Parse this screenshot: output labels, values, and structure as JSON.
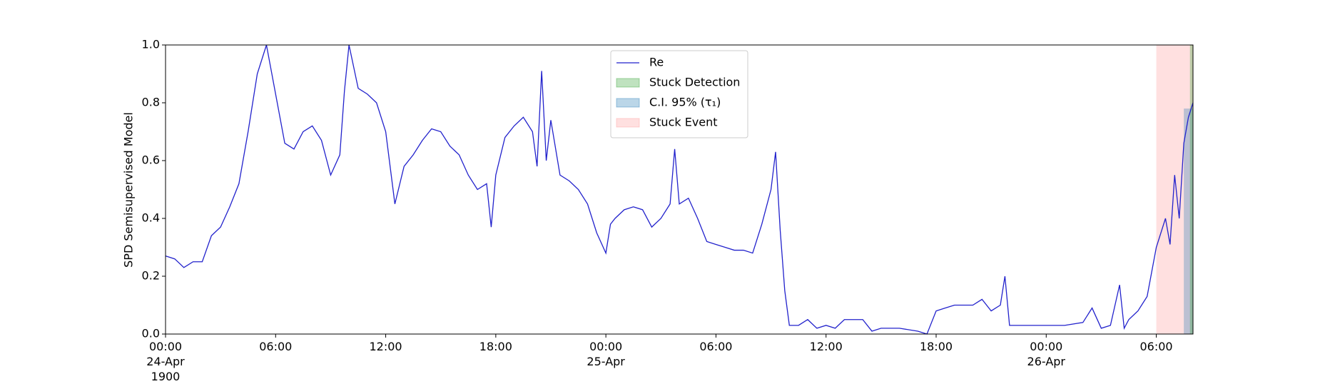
{
  "chart_data": {
    "type": "line",
    "ylabel": "SPD Semisupervised Model",
    "xlim": [
      "1900-04-24T00:00",
      "1900-04-26T08:00"
    ],
    "xticks": [
      {
        "value": "1900-04-24T00:00",
        "label": "00:00\n24-Apr\n1900"
      },
      {
        "value": "1900-04-24T06:00",
        "label": "06:00"
      },
      {
        "value": "1900-04-24T12:00",
        "label": "12:00"
      },
      {
        "value": "1900-04-24T18:00",
        "label": "18:00"
      },
      {
        "value": "1900-04-25T00:00",
        "label": "00:00\n25-Apr"
      },
      {
        "value": "1900-04-25T06:00",
        "label": "06:00"
      },
      {
        "value": "1900-04-25T12:00",
        "label": "12:00"
      },
      {
        "value": "1900-04-25T18:00",
        "label": "18:00"
      },
      {
        "value": "1900-04-26T00:00",
        "label": "00:00\n26-Apr"
      },
      {
        "value": "1900-04-26T06:00",
        "label": "06:00"
      }
    ],
    "ylim": [
      0,
      1
    ],
    "yticks": [
      {
        "value": 0,
        "label": "0.0"
      },
      {
        "value": 0.2,
        "label": "0.2"
      },
      {
        "value": 0.4,
        "label": "0.4"
      },
      {
        "value": 0.6,
        "label": "0.6"
      },
      {
        "value": 0.8,
        "label": "0.8"
      },
      {
        "value": 1,
        "label": "1.0"
      }
    ],
    "legend": "upper center",
    "series": [
      {
        "name": "Re",
        "color": "#2222cc",
        "x": [
          "1900-04-24T00:00",
          "1900-04-24T00:30",
          "1900-04-24T01:00",
          "1900-04-24T01:30",
          "1900-04-24T02:00",
          "1900-04-24T02:30",
          "1900-04-24T03:00",
          "1900-04-24T03:30",
          "1900-04-24T04:00",
          "1900-04-24T04:30",
          "1900-04-24T05:00",
          "1900-04-24T05:30",
          "1900-04-24T06:00",
          "1900-04-24T06:30",
          "1900-04-24T07:00",
          "1900-04-24T07:30",
          "1900-04-24T08:00",
          "1900-04-24T08:30",
          "1900-04-24T09:00",
          "1900-04-24T09:30",
          "1900-04-24T09:45",
          "1900-04-24T10:00",
          "1900-04-24T10:30",
          "1900-04-24T11:00",
          "1900-04-24T11:30",
          "1900-04-24T12:00",
          "1900-04-24T12:30",
          "1900-04-24T13:00",
          "1900-04-24T13:30",
          "1900-04-24T14:00",
          "1900-04-24T14:30",
          "1900-04-24T15:00",
          "1900-04-24T15:30",
          "1900-04-24T16:00",
          "1900-04-24T16:30",
          "1900-04-24T17:00",
          "1900-04-24T17:30",
          "1900-04-24T17:45",
          "1900-04-24T18:00",
          "1900-04-24T18:30",
          "1900-04-24T19:00",
          "1900-04-24T19:30",
          "1900-04-24T20:00",
          "1900-04-24T20:15",
          "1900-04-24T20:30",
          "1900-04-24T20:45",
          "1900-04-24T21:00",
          "1900-04-24T21:30",
          "1900-04-24T22:00",
          "1900-04-24T22:30",
          "1900-04-24T23:00",
          "1900-04-24T23:30",
          "1900-04-25T00:00",
          "1900-04-25T00:15",
          "1900-04-25T00:30",
          "1900-04-25T01:00",
          "1900-04-25T01:30",
          "1900-04-25T02:00",
          "1900-04-25T02:30",
          "1900-04-25T03:00",
          "1900-04-25T03:30",
          "1900-04-25T03:45",
          "1900-04-25T04:00",
          "1900-04-25T04:30",
          "1900-04-25T05:00",
          "1900-04-25T05:30",
          "1900-04-25T06:00",
          "1900-04-25T06:30",
          "1900-04-25T07:00",
          "1900-04-25T07:30",
          "1900-04-25T08:00",
          "1900-04-25T08:30",
          "1900-04-25T09:00",
          "1900-04-25T09:15",
          "1900-04-25T09:30",
          "1900-04-25T09:45",
          "1900-04-25T10:00",
          "1900-04-25T10:30",
          "1900-04-25T11:00",
          "1900-04-25T11:30",
          "1900-04-25T12:00",
          "1900-04-25T12:30",
          "1900-04-25T13:00",
          "1900-04-25T14:00",
          "1900-04-25T14:30",
          "1900-04-25T15:00",
          "1900-04-25T16:00",
          "1900-04-25T17:00",
          "1900-04-25T17:30",
          "1900-04-25T18:00",
          "1900-04-25T18:30",
          "1900-04-25T19:00",
          "1900-04-25T20:00",
          "1900-04-25T20:30",
          "1900-04-25T21:00",
          "1900-04-25T21:30",
          "1900-04-25T21:45",
          "1900-04-25T22:00",
          "1900-04-25T23:00",
          "1900-04-26T00:00",
          "1900-04-26T01:00",
          "1900-04-26T02:00",
          "1900-04-26T02:30",
          "1900-04-26T03:00",
          "1900-04-26T03:30",
          "1900-04-26T04:00",
          "1900-04-26T04:15",
          "1900-04-26T04:30",
          "1900-04-26T05:00",
          "1900-04-26T05:30",
          "1900-04-26T06:00",
          "1900-04-26T06:30",
          "1900-04-26T06:45",
          "1900-04-26T07:00",
          "1900-04-26T07:15",
          "1900-04-26T07:30",
          "1900-04-26T07:45",
          "1900-04-26T08:00"
        ],
        "values": [
          0.27,
          0.26,
          0.23,
          0.25,
          0.25,
          0.34,
          0.37,
          0.44,
          0.52,
          0.7,
          0.9,
          1.0,
          0.83,
          0.66,
          0.64,
          0.7,
          0.72,
          0.67,
          0.55,
          0.62,
          0.84,
          1.0,
          0.85,
          0.83,
          0.8,
          0.7,
          0.45,
          0.58,
          0.62,
          0.67,
          0.71,
          0.7,
          0.65,
          0.62,
          0.55,
          0.5,
          0.52,
          0.37,
          0.55,
          0.68,
          0.72,
          0.75,
          0.7,
          0.58,
          0.91,
          0.6,
          0.74,
          0.55,
          0.53,
          0.5,
          0.45,
          0.35,
          0.28,
          0.38,
          0.4,
          0.43,
          0.44,
          0.43,
          0.37,
          0.4,
          0.45,
          0.64,
          0.45,
          0.47,
          0.4,
          0.32,
          0.31,
          0.3,
          0.29,
          0.29,
          0.28,
          0.38,
          0.5,
          0.63,
          0.36,
          0.15,
          0.03,
          0.03,
          0.05,
          0.02,
          0.03,
          0.02,
          0.05,
          0.05,
          0.01,
          0.02,
          0.02,
          0.01,
          0,
          0.08,
          0.09,
          0.1,
          0.1,
          0.12,
          0.08,
          0.1,
          0.2,
          0.03,
          0.03,
          0.03,
          0.03,
          0.04,
          0.09,
          0.02,
          0.03,
          0.17,
          0.02,
          0.05,
          0.08,
          0.13,
          0.3,
          0.4,
          0.31,
          0.55,
          0.4,
          0.66,
          0.75,
          0.8
        ]
      }
    ],
    "spans": [
      {
        "name": "Stuck Detection",
        "color": "#2ca02c",
        "start": "1900-04-26T07:50",
        "end": "1900-04-26T08:00",
        "top": 1
      },
      {
        "name": "C.I. 95% (τ₁)",
        "color": "#1f77b4",
        "start": "1900-04-26T07:30",
        "end": "1900-04-26T08:00",
        "top": 0.78
      },
      {
        "name": "Stuck Event",
        "color": "#ff9999",
        "start": "1900-04-26T06:00",
        "end": "1900-04-26T08:00",
        "top": 1
      }
    ]
  }
}
